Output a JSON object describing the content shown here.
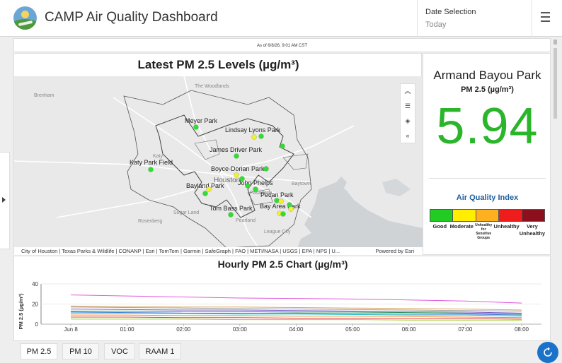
{
  "header": {
    "title": "CAMP Air Quality Dashboard",
    "date_label": "Date Selection",
    "date_value": "Today",
    "menu_icon": "hamburger-menu-icon",
    "logo_icon": "camp-logo"
  },
  "as_of": "As of 6/8/26, 9:01 AM CST",
  "map": {
    "title": "Latest PM 2.5 Levels (µg/m³)",
    "attribution": "City of Houston | Texas Parks & Wildlife | CONANP | Esri | TomTom | Garmin | SafeGraph | FAO | METI/NASA | USGS | EPA | NPS | U...",
    "powered_by": "Powered by Esri",
    "tools": [
      "double-chevron-up-icon",
      "list-icon",
      "layers-icon",
      "double-chevron-left-icon"
    ],
    "place_labels": [
      "Brenham",
      "The Woodlands",
      "Katy",
      "Sugar Land",
      "Rosenberg",
      "Pearland",
      "League City",
      "Baytown",
      "Pasadena",
      "Houston"
    ],
    "site_labels": [
      "Meyer Park",
      "Lindsay Lyons Park",
      "James Driver Park",
      "Katy Park Field",
      "Boyce-Dorian Park",
      "Bayland Park",
      "John Phelps",
      "Pecan Park",
      "Bay Area Park",
      "Tom Bass Park"
    ],
    "colors": {
      "good": "#2ee02e",
      "moderate": "#f2f22a"
    }
  },
  "site": {
    "name": "Armand Bayou Park",
    "unit_label": "PM 2.5 (µg/m³)",
    "value": "5.94",
    "value_color": "#2bb52b"
  },
  "aqi": {
    "title": "Air Quality Index",
    "levels": [
      {
        "label": "Good",
        "color": "#22cc22"
      },
      {
        "label": "Moderate",
        "color": "#ffee00"
      },
      {
        "label": "Unhealthy for Sensitive Groups",
        "color": "#ffb020"
      },
      {
        "label": "Unhealthy",
        "color": "#ee1c1c"
      },
      {
        "label": "Very Unhealthy",
        "color": "#8b0f1c"
      }
    ]
  },
  "chart_data": {
    "type": "line",
    "title": "Hourly PM 2.5 Chart (µg/m³)",
    "ylabel": "PM 2.5 (µg/m³)",
    "xlabel": "",
    "ylim": [
      0,
      40
    ],
    "yticks": [
      0,
      20,
      40
    ],
    "categories": [
      "Jun 8",
      "01:00",
      "02:00",
      "03:00",
      "04:00",
      "05:00",
      "06:00",
      "07:00",
      "08:00"
    ],
    "grid": true,
    "series": [
      {
        "color": "#e05ae0",
        "values": [
          29,
          28,
          27,
          26,
          25.5,
          25,
          24,
          23,
          21
        ]
      },
      {
        "color": "#d9a35a",
        "values": [
          18,
          17.5,
          17,
          17,
          16.5,
          16,
          15.5,
          15,
          14
        ]
      },
      {
        "color": "#a0a0a0",
        "values": [
          17,
          16.5,
          16,
          15.5,
          15,
          14.5,
          14,
          13.5,
          13
        ]
      },
      {
        "color": "#7b5ad1",
        "values": [
          15,
          14.5,
          14,
          14,
          13.5,
          13,
          12.5,
          12,
          11
        ]
      },
      {
        "color": "#2a8f5a",
        "values": [
          13,
          13,
          12.5,
          12.5,
          12,
          12,
          11.5,
          11,
          10
        ]
      },
      {
        "color": "#3b7bd4",
        "values": [
          12,
          11.5,
          11,
          11,
          11,
          10.5,
          10,
          10,
          9
        ]
      },
      {
        "color": "#28c4c4",
        "values": [
          11,
          11,
          10.5,
          10,
          10,
          9.5,
          9,
          9,
          8
        ]
      },
      {
        "color": "#f08a2a",
        "values": [
          9,
          9,
          8.5,
          8.5,
          8,
          8,
          7.5,
          7,
          6.5
        ]
      },
      {
        "color": "#e04040",
        "values": [
          7,
          7,
          6.5,
          6.5,
          6,
          6,
          5.5,
          5.5,
          5
        ]
      },
      {
        "color": "#9cd42a",
        "values": [
          5,
          5,
          5,
          4.5,
          4.5,
          4.5,
          4,
          4,
          4
        ]
      }
    ]
  },
  "tabs": [
    {
      "label": "PM 2.5",
      "active": true
    },
    {
      "label": "PM 10"
    },
    {
      "label": "VOC"
    },
    {
      "label": "RAAM 1"
    }
  ],
  "refresh_icon": "refresh-icon"
}
